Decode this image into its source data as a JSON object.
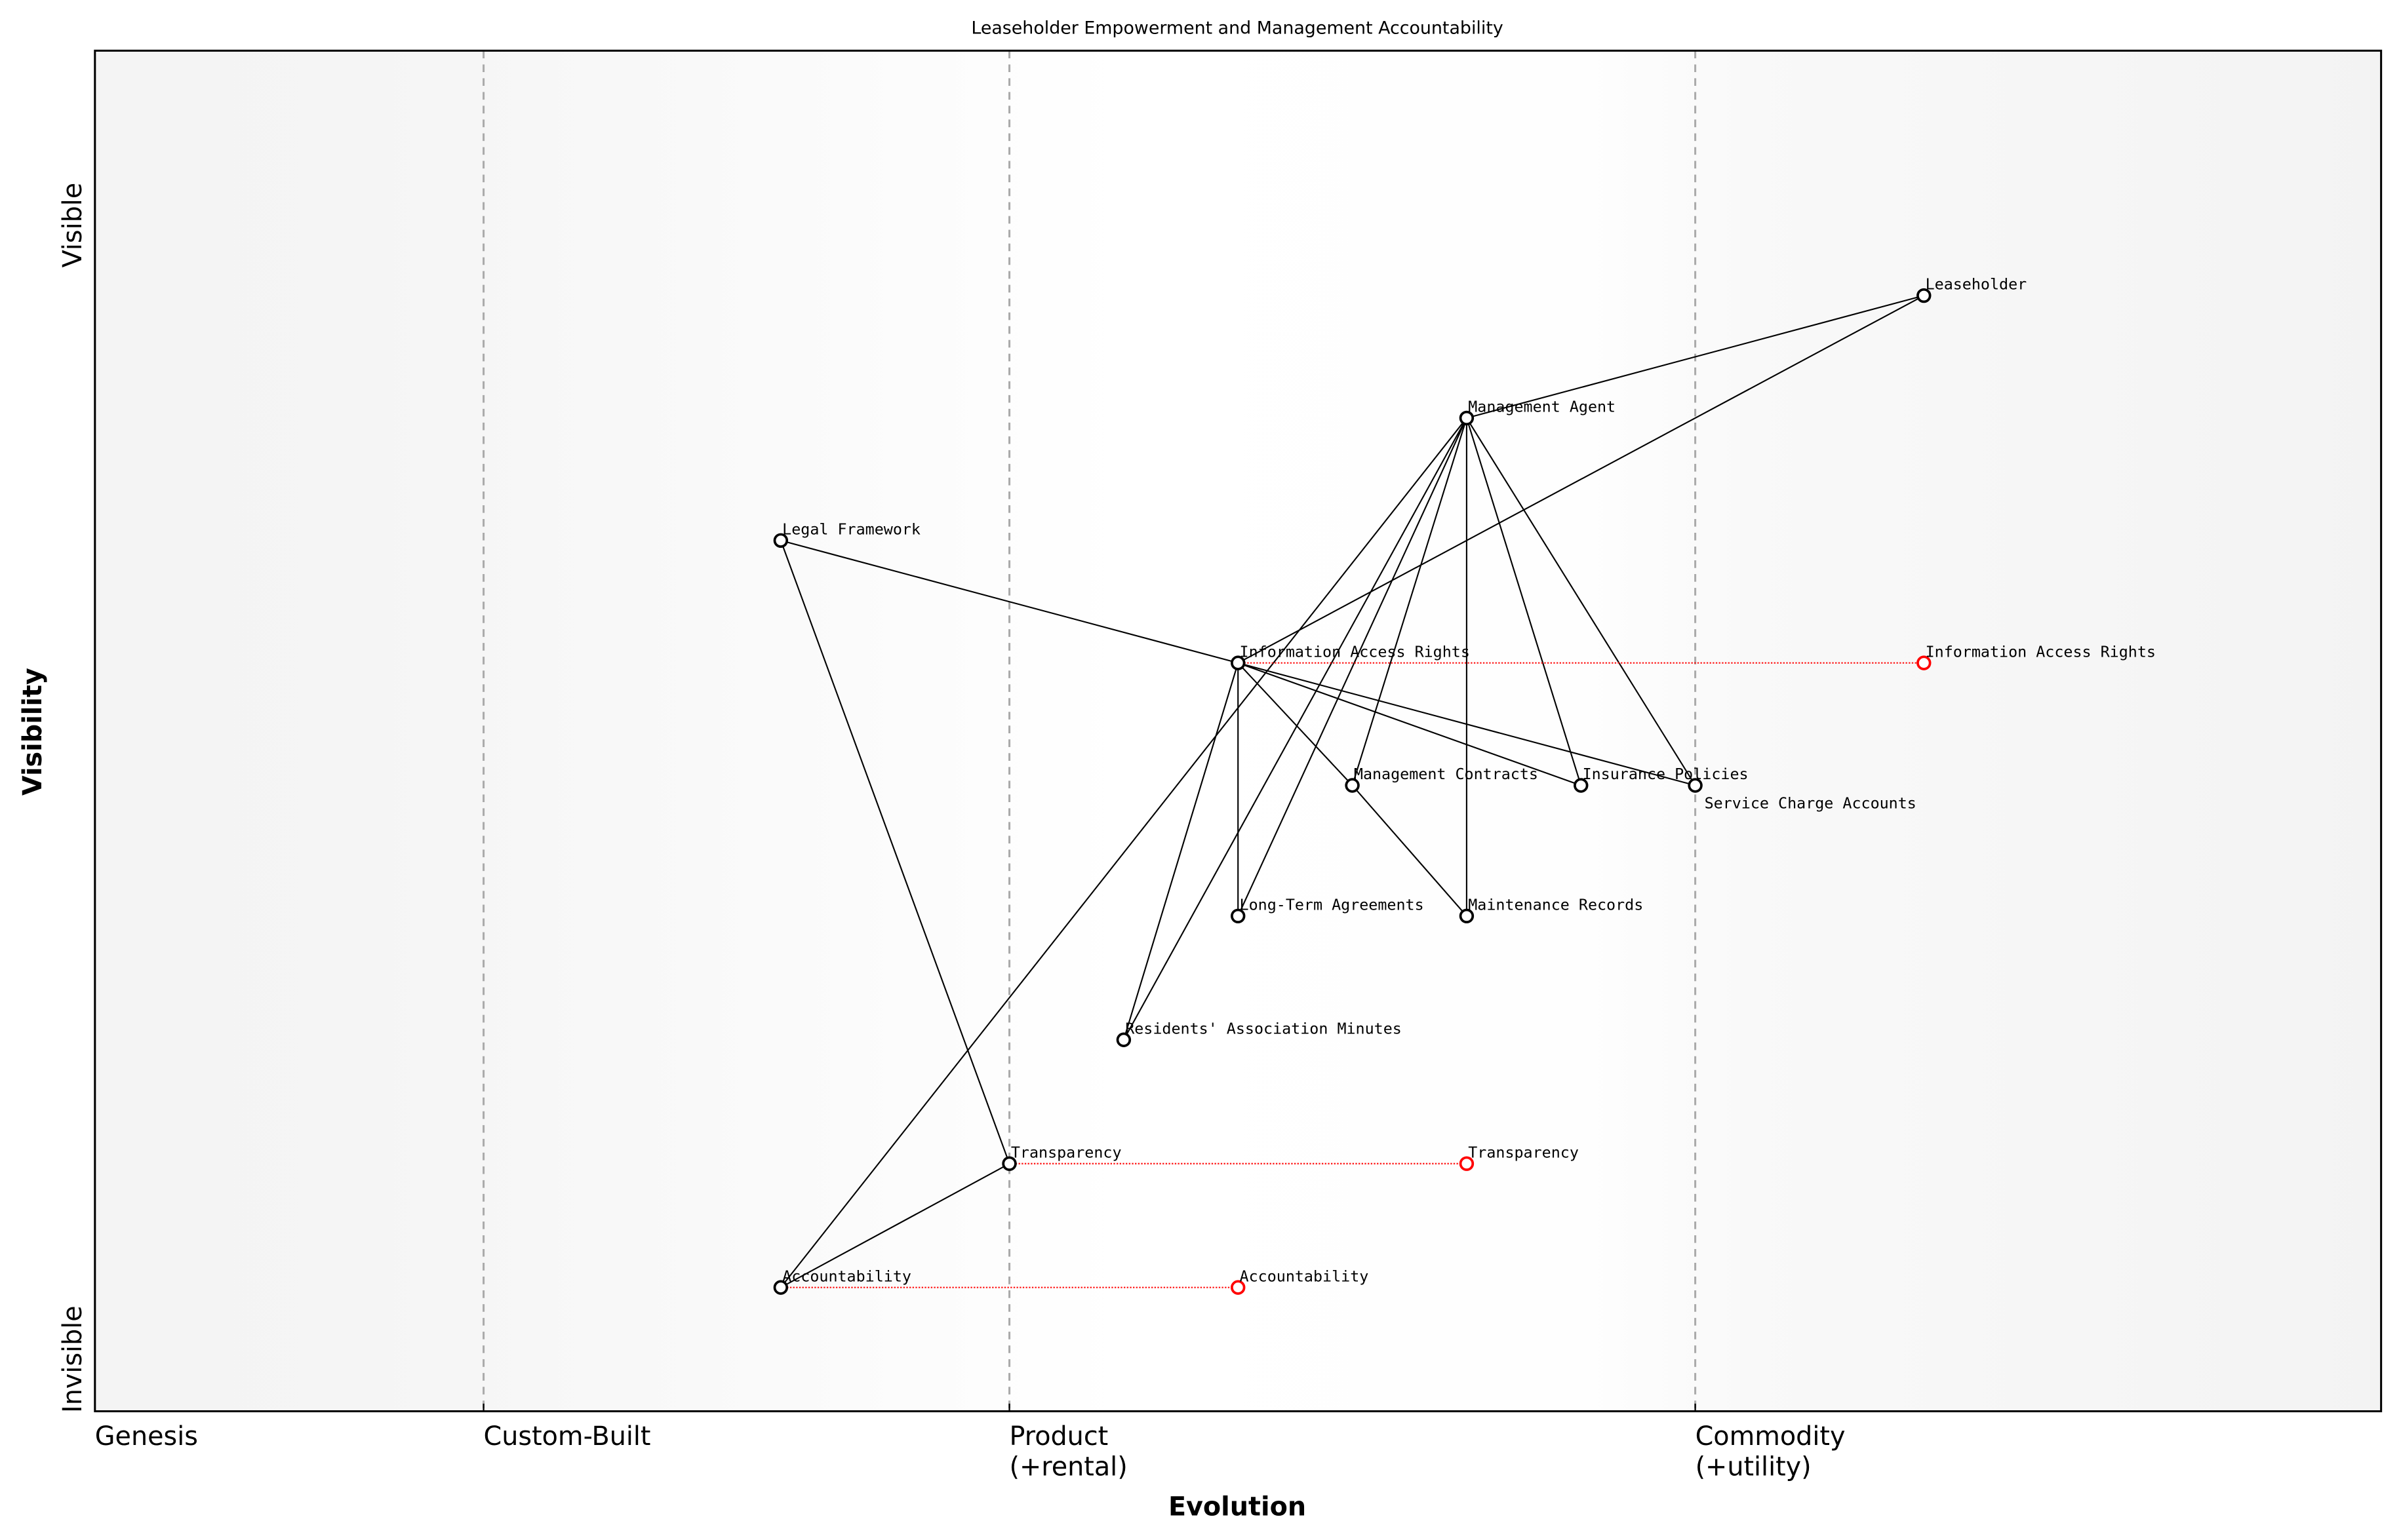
{
  "title": "Leaseholder Empowerment and Management Accountability",
  "x_axis": {
    "label": "Evolution",
    "stages": [
      {
        "label": "Genesis",
        "sub": "",
        "at": 0.0
      },
      {
        "label": "Custom-Built",
        "sub": "",
        "at": 0.17
      },
      {
        "label": "Product",
        "sub": "(+rental)",
        "at": 0.4
      },
      {
        "label": "Commodity",
        "sub": "(+utility)",
        "at": 0.7
      }
    ]
  },
  "y_axis": {
    "label": "Visibility",
    "top": "Visible",
    "bottom": "Invisible"
  },
  "colors": {
    "node": "#000000",
    "evolved": "#ff0000",
    "stage_line": "#aaaaaa"
  },
  "components": [
    {
      "id": "leaseholder",
      "name": "Leaseholder",
      "evolution": 0.8,
      "visibility": 0.82
    },
    {
      "id": "management-agent",
      "name": "Management Agent",
      "evolution": 0.6,
      "visibility": 0.73
    },
    {
      "id": "legal-framework",
      "name": "Legal Framework",
      "evolution": 0.3,
      "visibility": 0.64
    },
    {
      "id": "information-access-rights",
      "name": "Information Access Rights",
      "evolution": 0.5,
      "visibility": 0.55
    },
    {
      "id": "management-contracts",
      "name": "Management Contracts",
      "evolution": 0.55,
      "visibility": 0.46
    },
    {
      "id": "insurance-policies",
      "name": "Insurance Policies",
      "evolution": 0.65,
      "visibility": 0.46
    },
    {
      "id": "service-charge-accounts",
      "name": "Service Charge Accounts",
      "evolution": 0.7,
      "visibility": 0.46
    },
    {
      "id": "long-term-agreements",
      "name": "Long-Term Agreements",
      "evolution": 0.5,
      "visibility": 0.364
    },
    {
      "id": "maintenance-records",
      "name": "Maintenance Records",
      "evolution": 0.6,
      "visibility": 0.364
    },
    {
      "id": "residents-association-minutes",
      "name": "Residents' Association Minutes",
      "evolution": 0.45,
      "visibility": 0.273
    },
    {
      "id": "transparency",
      "name": "Transparency",
      "evolution": 0.4,
      "visibility": 0.182
    },
    {
      "id": "accountability",
      "name": "Accountability",
      "evolution": 0.3,
      "visibility": 0.091
    }
  ],
  "evolved": [
    {
      "id": "information-access-rights",
      "name": "Information Access Rights",
      "evolution": 0.8,
      "visibility": 0.55
    },
    {
      "id": "transparency",
      "name": "Transparency",
      "evolution": 0.6,
      "visibility": 0.182
    },
    {
      "id": "accountability",
      "name": "Accountability",
      "evolution": 0.5,
      "visibility": 0.091
    }
  ],
  "links": [
    [
      "leaseholder",
      "management-agent"
    ],
    [
      "leaseholder",
      "information-access-rights"
    ],
    [
      "management-agent",
      "accountability"
    ],
    [
      "management-agent",
      "residents-association-minutes"
    ],
    [
      "management-agent",
      "long-term-agreements"
    ],
    [
      "management-agent",
      "management-contracts"
    ],
    [
      "management-agent",
      "maintenance-records"
    ],
    [
      "management-agent",
      "insurance-policies"
    ],
    [
      "management-agent",
      "service-charge-accounts"
    ],
    [
      "legal-framework",
      "information-access-rights"
    ],
    [
      "legal-framework",
      "transparency"
    ],
    [
      "information-access-rights",
      "residents-association-minutes"
    ],
    [
      "information-access-rights",
      "long-term-agreements"
    ],
    [
      "information-access-rights",
      "management-contracts"
    ],
    [
      "information-access-rights",
      "insurance-policies"
    ],
    [
      "information-access-rights",
      "service-charge-accounts"
    ],
    [
      "management-contracts",
      "maintenance-records"
    ],
    [
      "transparency",
      "accountability"
    ]
  ]
}
